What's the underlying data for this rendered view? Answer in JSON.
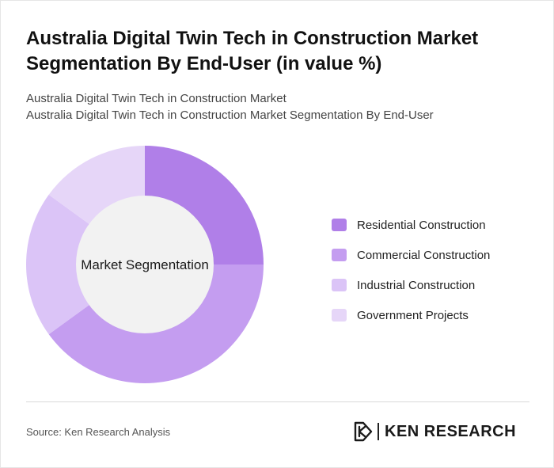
{
  "header": {
    "title": "Australia Digital Twin Tech in Construction Market Segmentation By End-User (in value %)",
    "subtitle_line1": "Australia Digital Twin Tech in Construction Market",
    "subtitle_line2": "Australia Digital Twin Tech in Construction Market Segmentation By End-User"
  },
  "chart_data": {
    "type": "pie",
    "variant": "donut",
    "center_label": "Market Segmentation",
    "slices": [
      {
        "name": "Residential Construction",
        "value": 25,
        "color": "#b07fe8"
      },
      {
        "name": "Commercial Construction",
        "value": 40,
        "color": "#c49df0"
      },
      {
        "name": "Industrial Construction",
        "value": 20,
        "color": "#dbc4f7"
      },
      {
        "name": "Government Projects",
        "value": 15,
        "color": "#e6d6f8"
      }
    ],
    "legend_position": "right"
  },
  "footer": {
    "source": "Source: Ken Research Analysis",
    "logo_text": "KEN RESEARCH"
  }
}
